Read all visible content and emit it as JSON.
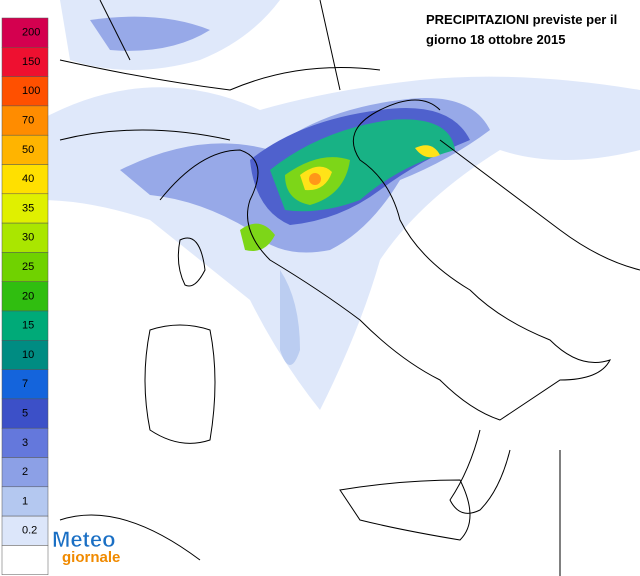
{
  "header": {
    "title": [
      "PRECIPITAZIONI previste per il",
      "giorno 18 ottobre 2015"
    ]
  },
  "legend": {
    "items": [
      {
        "label": "200",
        "color": "#d4004f"
      },
      {
        "label": "150",
        "color": "#ee1030"
      },
      {
        "label": "100",
        "color": "#ff5000"
      },
      {
        "label": "70",
        "color": "#ff8c00"
      },
      {
        "label": "50",
        "color": "#ffb400"
      },
      {
        "label": "40",
        "color": "#ffe000"
      },
      {
        "label": "35",
        "color": "#e0f000"
      },
      {
        "label": "30",
        "color": "#aae600"
      },
      {
        "label": "25",
        "color": "#70d200"
      },
      {
        "label": "20",
        "color": "#30be10"
      },
      {
        "label": "15",
        "color": "#00aa78"
      },
      {
        "label": "10",
        "color": "#008c82"
      },
      {
        "label": "7",
        "color": "#1464dc"
      },
      {
        "label": "5",
        "color": "#3c50c8"
      },
      {
        "label": "3",
        "color": "#6478dc"
      },
      {
        "label": "2",
        "color": "#8ca0e6"
      },
      {
        "label": "1",
        "color": "#b4c8f0"
      },
      {
        "label": "0.2",
        "color": "#dce6fa"
      }
    ]
  },
  "logo": {
    "line1": "Meteo",
    "line2": "giornale"
  }
}
